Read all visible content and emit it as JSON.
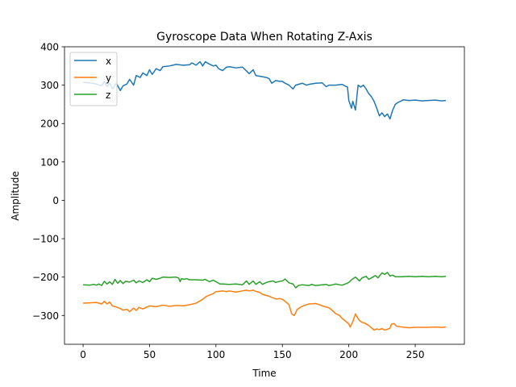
{
  "chart_data": {
    "type": "line",
    "title": "Gyroscope Data When Rotating Z-Axis",
    "xlabel": "Time",
    "ylabel": "Amplitude",
    "xlim": [
      -14,
      287
    ],
    "ylim": [
      -375,
      400
    ],
    "xticks": [
      0,
      50,
      100,
      150,
      200,
      250
    ],
    "yticks": [
      -300,
      -200,
      -100,
      0,
      100,
      200,
      300,
      400
    ],
    "ytick_labels": [
      "−300",
      "−200",
      "−100",
      "0",
      "100",
      "200",
      "300",
      "400"
    ],
    "legend_position": "top-left",
    "grid": false,
    "series": [
      {
        "name": "x",
        "color": "#1f77b4",
        "points": [
          [
            0,
            307
          ],
          [
            5,
            306
          ],
          [
            10,
            303
          ],
          [
            14,
            298
          ],
          [
            16,
            310
          ],
          [
            18,
            296
          ],
          [
            20,
            306
          ],
          [
            22,
            290
          ],
          [
            25,
            305
          ],
          [
            28,
            286
          ],
          [
            30,
            298
          ],
          [
            33,
            303
          ],
          [
            35,
            315
          ],
          [
            38,
            300
          ],
          [
            40,
            325
          ],
          [
            43,
            320
          ],
          [
            45,
            332
          ],
          [
            48,
            325
          ],
          [
            50,
            340
          ],
          [
            52,
            328
          ],
          [
            55,
            343
          ],
          [
            58,
            338
          ],
          [
            60,
            348
          ],
          [
            65,
            350
          ],
          [
            70,
            354
          ],
          [
            75,
            352
          ],
          [
            80,
            353
          ],
          [
            82,
            358
          ],
          [
            85,
            352
          ],
          [
            88,
            361
          ],
          [
            90,
            350
          ],
          [
            92,
            361
          ],
          [
            95,
            355
          ],
          [
            98,
            350
          ],
          [
            100,
            352
          ],
          [
            102,
            343
          ],
          [
            105,
            338
          ],
          [
            108,
            347
          ],
          [
            110,
            348
          ],
          [
            115,
            345
          ],
          [
            120,
            347
          ],
          [
            125,
            330
          ],
          [
            128,
            340
          ],
          [
            130,
            325
          ],
          [
            135,
            322
          ],
          [
            138,
            320
          ],
          [
            140,
            317
          ],
          [
            142,
            305
          ],
          [
            145,
            312
          ],
          [
            148,
            310
          ],
          [
            150,
            310
          ],
          [
            152,
            305
          ],
          [
            155,
            300
          ],
          [
            158,
            290
          ],
          [
            160,
            300
          ],
          [
            165,
            305
          ],
          [
            168,
            300
          ],
          [
            170,
            302
          ],
          [
            175,
            305
          ],
          [
            180,
            306
          ],
          [
            183,
            296
          ],
          [
            185,
            300
          ],
          [
            190,
            300
          ],
          [
            195,
            302
          ],
          [
            197,
            298
          ],
          [
            199,
            295
          ],
          [
            200,
            260
          ],
          [
            202,
            240
          ],
          [
            203,
            258
          ],
          [
            205,
            235
          ],
          [
            207,
            300
          ],
          [
            209,
            295
          ],
          [
            211,
            300
          ],
          [
            213,
            290
          ],
          [
            215,
            278
          ],
          [
            217,
            270
          ],
          [
            219,
            258
          ],
          [
            221,
            240
          ],
          [
            223,
            220
          ],
          [
            225,
            228
          ],
          [
            227,
            218
          ],
          [
            229,
            225
          ],
          [
            231,
            212
          ],
          [
            233,
            235
          ],
          [
            235,
            250
          ],
          [
            237,
            255
          ],
          [
            239,
            258
          ],
          [
            241,
            262
          ],
          [
            245,
            260
          ],
          [
            250,
            261
          ],
          [
            255,
            259
          ],
          [
            260,
            260
          ],
          [
            265,
            261
          ],
          [
            270,
            259
          ],
          [
            273,
            260
          ]
        ]
      },
      {
        "name": "y",
        "color": "#ff7f0e",
        "points": [
          [
            0,
            -268
          ],
          [
            5,
            -267
          ],
          [
            10,
            -266
          ],
          [
            14,
            -270
          ],
          [
            16,
            -263
          ],
          [
            18,
            -270
          ],
          [
            20,
            -265
          ],
          [
            22,
            -275
          ],
          [
            25,
            -278
          ],
          [
            28,
            -282
          ],
          [
            30,
            -286
          ],
          [
            33,
            -284
          ],
          [
            35,
            -290
          ],
          [
            38,
            -281
          ],
          [
            40,
            -287
          ],
          [
            42,
            -279
          ],
          [
            45,
            -283
          ],
          [
            48,
            -278
          ],
          [
            50,
            -275
          ],
          [
            55,
            -277
          ],
          [
            60,
            -273
          ],
          [
            65,
            -276
          ],
          [
            70,
            -274
          ],
          [
            75,
            -275
          ],
          [
            80,
            -272
          ],
          [
            85,
            -268
          ],
          [
            88,
            -262
          ],
          [
            90,
            -258
          ],
          [
            92,
            -252
          ],
          [
            95,
            -247
          ],
          [
            98,
            -243
          ],
          [
            100,
            -238
          ],
          [
            105,
            -236
          ],
          [
            108,
            -238
          ],
          [
            110,
            -236
          ],
          [
            115,
            -239
          ],
          [
            120,
            -236
          ],
          [
            123,
            -234
          ],
          [
            125,
            -236
          ],
          [
            128,
            -234
          ],
          [
            130,
            -237
          ],
          [
            133,
            -240
          ],
          [
            135,
            -245
          ],
          [
            138,
            -248
          ],
          [
            140,
            -250
          ],
          [
            143,
            -254
          ],
          [
            145,
            -257
          ],
          [
            148,
            -256
          ],
          [
            150,
            -258
          ],
          [
            152,
            -263
          ],
          [
            155,
            -272
          ],
          [
            157,
            -296
          ],
          [
            159,
            -300
          ],
          [
            161,
            -285
          ],
          [
            163,
            -280
          ],
          [
            165,
            -276
          ],
          [
            168,
            -272
          ],
          [
            170,
            -270
          ],
          [
            175,
            -269
          ],
          [
            178,
            -272
          ],
          [
            180,
            -275
          ],
          [
            185,
            -280
          ],
          [
            188,
            -288
          ],
          [
            190,
            -295
          ],
          [
            193,
            -300
          ],
          [
            195,
            -308
          ],
          [
            198,
            -316
          ],
          [
            200,
            -322
          ],
          [
            201,
            -330
          ],
          [
            203,
            -316
          ],
          [
            205,
            -296
          ],
          [
            206,
            -303
          ],
          [
            208,
            -313
          ],
          [
            210,
            -318
          ],
          [
            212,
            -320
          ],
          [
            215,
            -326
          ],
          [
            217,
            -332
          ],
          [
            219,
            -338
          ],
          [
            221,
            -335
          ],
          [
            223,
            -337
          ],
          [
            225,
            -334
          ],
          [
            227,
            -338
          ],
          [
            229,
            -336
          ],
          [
            231,
            -333
          ],
          [
            232,
            -323
          ],
          [
            234,
            -321
          ],
          [
            236,
            -328
          ],
          [
            240,
            -330
          ],
          [
            245,
            -332
          ],
          [
            250,
            -331
          ],
          [
            255,
            -331
          ],
          [
            260,
            -331
          ],
          [
            265,
            -330
          ],
          [
            270,
            -331
          ],
          [
            273,
            -330
          ]
        ]
      },
      {
        "name": "z",
        "color": "#2ca02c",
        "points": [
          [
            0,
            -220
          ],
          [
            5,
            -221
          ],
          [
            8,
            -219
          ],
          [
            10,
            -221
          ],
          [
            12,
            -218
          ],
          [
            14,
            -222
          ],
          [
            16,
            -211
          ],
          [
            18,
            -218
          ],
          [
            20,
            -212
          ],
          [
            22,
            -219
          ],
          [
            24,
            -206
          ],
          [
            26,
            -216
          ],
          [
            28,
            -209
          ],
          [
            30,
            -217
          ],
          [
            32,
            -211
          ],
          [
            35,
            -213
          ],
          [
            38,
            -208
          ],
          [
            40,
            -215
          ],
          [
            42,
            -210
          ],
          [
            45,
            -214
          ],
          [
            48,
            -207
          ],
          [
            50,
            -212
          ],
          [
            52,
            -203
          ],
          [
            55,
            -206
          ],
          [
            58,
            -203
          ],
          [
            60,
            -200
          ],
          [
            65,
            -201
          ],
          [
            70,
            -200
          ],
          [
            72,
            -203
          ],
          [
            73,
            -212
          ],
          [
            74,
            -204
          ],
          [
            76,
            -206
          ],
          [
            78,
            -204
          ],
          [
            80,
            -207
          ],
          [
            85,
            -207
          ],
          [
            90,
            -208
          ],
          [
            92,
            -206
          ],
          [
            95,
            -212
          ],
          [
            98,
            -208
          ],
          [
            100,
            -212
          ],
          [
            103,
            -218
          ],
          [
            105,
            -218
          ],
          [
            110,
            -219
          ],
          [
            115,
            -218
          ],
          [
            120,
            -220
          ],
          [
            123,
            -210
          ],
          [
            125,
            -219
          ],
          [
            128,
            -210
          ],
          [
            130,
            -219
          ],
          [
            133,
            -212
          ],
          [
            135,
            -219
          ],
          [
            138,
            -214
          ],
          [
            140,
            -212
          ],
          [
            143,
            -210
          ],
          [
            145,
            -214
          ],
          [
            148,
            -211
          ],
          [
            150,
            -210
          ],
          [
            152,
            -205
          ],
          [
            155,
            -215
          ],
          [
            158,
            -218
          ],
          [
            160,
            -228
          ],
          [
            162,
            -222
          ],
          [
            165,
            -220
          ],
          [
            170,
            -222
          ],
          [
            172,
            -219
          ],
          [
            175,
            -222
          ],
          [
            180,
            -220
          ],
          [
            183,
            -219
          ],
          [
            185,
            -222
          ],
          [
            188,
            -220
          ],
          [
            190,
            -218
          ],
          [
            193,
            -220
          ],
          [
            195,
            -221
          ],
          [
            198,
            -217
          ],
          [
            200,
            -214
          ],
          [
            202,
            -207
          ],
          [
            205,
            -200
          ],
          [
            208,
            -210
          ],
          [
            210,
            -202
          ],
          [
            213,
            -198
          ],
          [
            215,
            -206
          ],
          [
            218,
            -200
          ],
          [
            220,
            -196
          ],
          [
            222,
            -202
          ],
          [
            225,
            -189
          ],
          [
            227,
            -193
          ],
          [
            229,
            -188
          ],
          [
            231,
            -197
          ],
          [
            233,
            -195
          ],
          [
            235,
            -199
          ],
          [
            240,
            -199
          ],
          [
            245,
            -198
          ],
          [
            250,
            -199
          ],
          [
            255,
            -198
          ],
          [
            260,
            -199
          ],
          [
            265,
            -198
          ],
          [
            270,
            -199
          ],
          [
            273,
            -198
          ]
        ]
      }
    ]
  }
}
